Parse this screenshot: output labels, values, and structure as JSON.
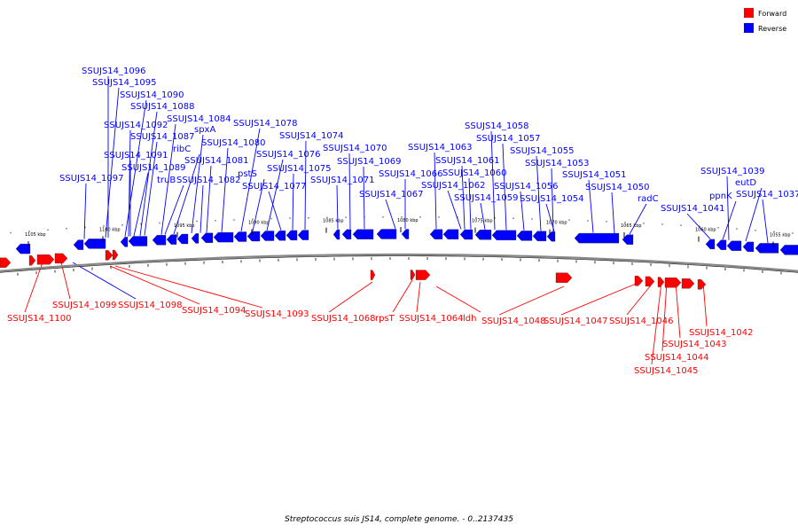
{
  "legend": [
    {
      "label": "Forward",
      "color": "#ff0000"
    },
    {
      "label": "Reverse",
      "color": "#0000ff"
    }
  ],
  "caption": "Streptococcus suis JS14, complete genome. - 0..2137435",
  "colors": {
    "forward": "#ff0000",
    "reverse": "#0000ff",
    "backbone": "#888888"
  },
  "ticks": [
    "1105 kbp",
    "1100 kbp",
    "1095 kbp",
    "1090 kbp",
    "1085 kbp",
    "1080 kbp",
    "1075 kbp",
    "1070 kbp",
    "1065 kbp",
    "1060 kbp",
    "1055 kbp"
  ],
  "reverse_labels": [
    "SSUJS14_1096",
    "SSUJS14_1095",
    "SSUJS14_1090",
    "SSUJS14_1088",
    "SSUJS14_1084",
    "SSUJS14_1092",
    "spxA",
    "SSUJS14_1087",
    "ribC",
    "SSUJS14_1080",
    "SSUJS14_1091",
    "SSUJS14_1081",
    "SSUJS14_1089",
    "SSUJS14_1097",
    "truB",
    "SSUJS14_1082",
    "SSUJS14_1078",
    "SSUJS14_1074",
    "SSUJS14_1076",
    "SSUJS14_1075",
    "pstS",
    "SSUJS14_1077",
    "SSUJS14_1070",
    "SSUJS14_1069",
    "SSUJS14_1071",
    "SSUJS14_1066",
    "SSUJS14_1067",
    "SSUJS14_1063",
    "SSUJS14_1061",
    "SSUJS14_1060",
    "SSUJS14_1062",
    "SSUJS14_1059",
    "SSUJS14_1058",
    "SSUJS14_1057",
    "SSUJS14_1055",
    "SSUJS14_1053",
    "SSUJS14_1056",
    "SSUJS14_1054",
    "SSUJS14_1051",
    "SSUJS14_1050",
    "radC",
    "SSUJS14_1041",
    "SSUJS14_1039",
    "eutD",
    "ppnK",
    "SSUJS14_1037"
  ],
  "forward_labels": [
    "SSUJS14_1100",
    "SSUJS14_1099",
    "SSUJS14_1098",
    "SSUJS14_1094",
    "SSUJS14_1093",
    "SSUJS14_1068",
    "rpsT",
    "SSUJS14_1064",
    "ldh",
    "SSUJS14_1048",
    "SSUJS14_1047",
    "SSUJS14_1046",
    "SSUJS14_1042",
    "SSUJS14_1043",
    "SSUJS14_1044",
    "SSUJS14_1045"
  ]
}
